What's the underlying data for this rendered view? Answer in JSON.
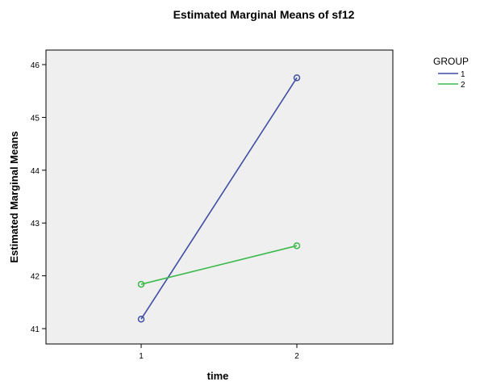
{
  "chart_data": {
    "type": "line",
    "title": "Estimated Marginal Means of sf12",
    "xlabel": "time",
    "ylabel": "Estimated Marginal Means",
    "categories": [
      "1",
      "2"
    ],
    "yticks": [
      41,
      42,
      43,
      44,
      45,
      46
    ],
    "ylim": [
      40.8,
      46.3
    ],
    "grid": false,
    "legend": {
      "title": "GROUP",
      "placement": "right-outside-top"
    },
    "series": [
      {
        "name": "1",
        "values": [
          41.18,
          45.75
        ],
        "color": "#3f4fa3",
        "marker": "circle-open"
      },
      {
        "name": "2",
        "values": [
          41.84,
          42.57
        ],
        "color": "#3cb94c",
        "marker": "circle-open"
      }
    ],
    "colors": {
      "plot_background": "#efefef",
      "frame": "#000000"
    }
  }
}
